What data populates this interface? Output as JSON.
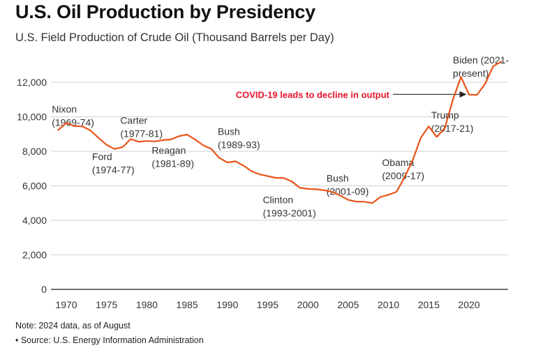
{
  "title": "U.S. Oil Production by Presidency",
  "subtitle": "U.S. Field Production of Crude Oil (Thousand Barrels per Day)",
  "notes": {
    "note": "Note: 2024 data, as of August",
    "source": "• Source: U.S. Energy Information Administration"
  },
  "colors": {
    "line": "#e8531a",
    "annotation": "#e8132a",
    "grid": "#d9d9d9",
    "axis": "#444444",
    "text": "#333333"
  },
  "chart_data": {
    "type": "line",
    "title": "U.S. Oil Production by Presidency",
    "subtitle": "U.S. Field Production of Crude Oil (Thousand Barrels per Day)",
    "xlabel": "",
    "ylabel": "",
    "xlim": [
      1968,
      2025
    ],
    "ylim": [
      0,
      12000
    ],
    "grid": true,
    "x_ticks": [
      1970,
      1975,
      1980,
      1985,
      1990,
      1995,
      2000,
      2005,
      2010,
      2015,
      2020
    ],
    "y_ticks": [
      0,
      2000,
      4000,
      6000,
      8000,
      10000,
      12000
    ],
    "y_tick_labels": [
      "0",
      "2,000",
      "4,000",
      "6,000",
      "8,000",
      "10,000",
      "12,000"
    ],
    "series": [
      {
        "name": "U.S. field production of crude oil",
        "x": [
          1969,
          1970,
          1971,
          1972,
          1973,
          1974,
          1975,
          1976,
          1977,
          1978,
          1979,
          1980,
          1981,
          1982,
          1983,
          1984,
          1985,
          1986,
          1987,
          1988,
          1989,
          1990,
          1991,
          1992,
          1993,
          1994,
          1995,
          1996,
          1997,
          1998,
          1999,
          2000,
          2001,
          2002,
          2003,
          2004,
          2005,
          2006,
          2007,
          2008,
          2009,
          2010,
          2011,
          2012,
          2013,
          2014,
          2015,
          2016,
          2017,
          2018,
          2019,
          2020,
          2021,
          2022,
          2023,
          2024
        ],
        "values": [
          9240,
          9637,
          9463,
          9441,
          9208,
          8774,
          8375,
          8132,
          8245,
          8707,
          8552,
          8597,
          8572,
          8649,
          8688,
          8879,
          8971,
          8680,
          8349,
          8140,
          7613,
          7355,
          7417,
          7171,
          6847,
          6662,
          6560,
          6465,
          6452,
          6252,
          5881,
          5822,
          5801,
          5744,
          5649,
          5441,
          5184,
          5086,
          5077,
          5000,
          5353,
          5479,
          5653,
          6502,
          7466,
          8777,
          9442,
          8833,
          9352,
          10991,
          12315,
          11283,
          11267,
          11911,
          12927,
          13200
        ]
      }
    ],
    "presidency_labels": [
      {
        "line1": "Nixon",
        "line2": "(1969-74)",
        "x": 1968.2,
        "y": 10250
      },
      {
        "line1": "Ford",
        "line2": "(1974-77)",
        "x": 1973.2,
        "y": 7500
      },
      {
        "line1": "Carter",
        "line2": "(1977-81)",
        "x": 1976.7,
        "y": 9600
      },
      {
        "line1": "Reagan",
        "line2": "(1981-89)",
        "x": 1980.6,
        "y": 7850
      },
      {
        "line1": "Bush",
        "line2": "(1989-93)",
        "x": 1988.8,
        "y": 8950
      },
      {
        "line1": "Clinton",
        "line2": "(1993-2001)",
        "x": 1994.4,
        "y": 5000
      },
      {
        "line1": "Bush",
        "line2": "(2001-09)",
        "x": 2002.3,
        "y": 6250
      },
      {
        "line1": "Obama",
        "line2": "(2009-17)",
        "x": 2009.2,
        "y": 7150
      },
      {
        "line1": "Trump",
        "line2": "(2017-21)",
        "x": 2015.3,
        "y": 9900
      },
      {
        "line1": "Biden (2021-",
        "line2": "present)",
        "x": 2018.0,
        "y": 13100
      }
    ],
    "annotation": {
      "text": "COVID-19 leads to decline in output",
      "arrow_from_year": 2011.3,
      "arrow_to_year": 2019.7,
      "y": 11300
    }
  }
}
